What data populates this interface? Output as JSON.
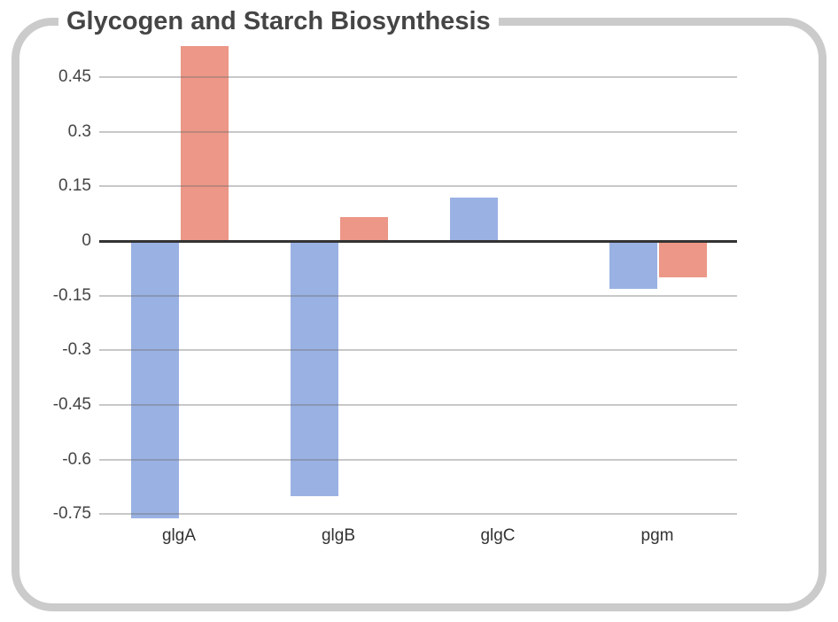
{
  "chart_data": {
    "type": "bar",
    "title": "Glycogen and Starch Biosynthesis",
    "categories": [
      "glgA",
      "glgB",
      "glgC",
      "pgm"
    ],
    "series": [
      {
        "name": "blue-series",
        "color": "#9ab1e3",
        "values": [
          -0.76,
          -0.7,
          0.12,
          -0.13
        ]
      },
      {
        "name": "red-series",
        "color": "#ec9787",
        "values": [
          0.535,
          0.065,
          0,
          -0.1
        ]
      }
    ],
    "ylim": [
      -0.8,
      0.55
    ],
    "yticks": [
      {
        "label": "0.45",
        "value": 0.45
      },
      {
        "label": "0.3",
        "value": 0.3
      },
      {
        "label": "0.15",
        "value": 0.15
      },
      {
        "label": "0",
        "value": 0
      },
      {
        "label": "-0.15",
        "value": -0.15
      },
      {
        "label": "-0.3",
        "value": -0.3
      },
      {
        "label": "-0.45",
        "value": -0.45
      },
      {
        "label": "-0.6",
        "value": -0.6
      },
      {
        "label": "-0.75",
        "value": -0.75
      }
    ],
    "grid": true,
    "legend_position": "none",
    "colors": {
      "gridline": "rgba(110,110,110,0.38)",
      "zero_line": "#333333",
      "axis_text": "#444444",
      "title_text": "#454545",
      "frame_border": "#cbcbcb",
      "background": "#ffffff"
    }
  }
}
